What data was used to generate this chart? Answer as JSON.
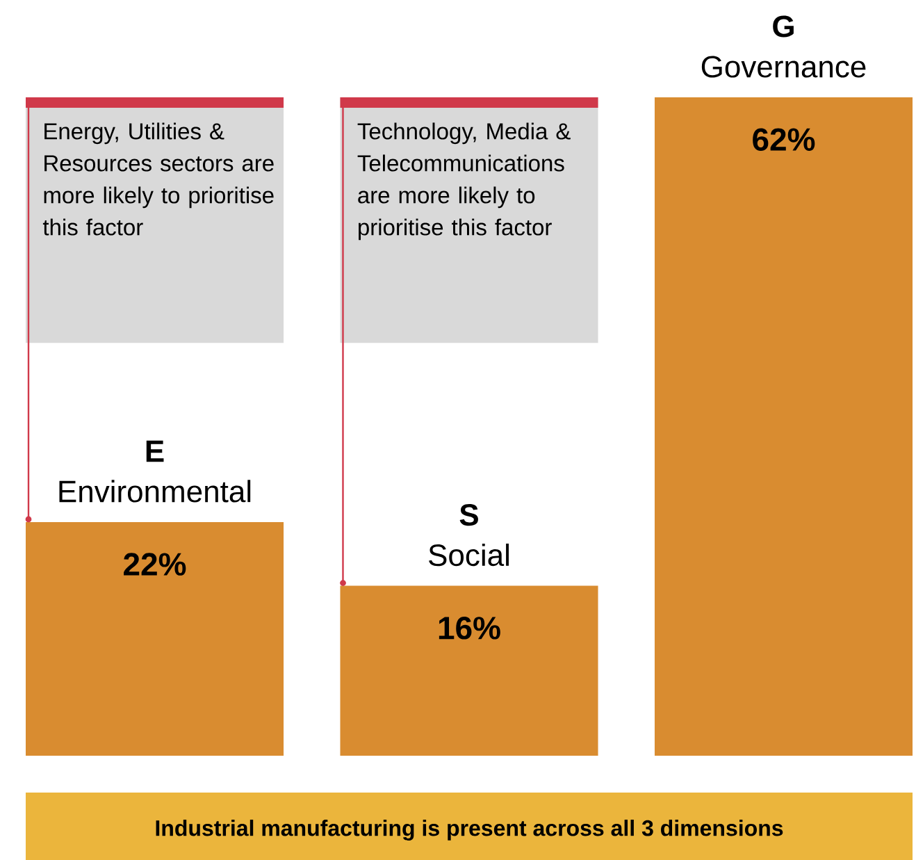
{
  "chart_data": {
    "type": "bar",
    "categories": [
      "**E** Environmental",
      "**S** Social",
      "**G** Governance"
    ],
    "values": [
      22,
      16,
      62
    ],
    "color": "#d98c30",
    "value_labels": [
      "22%",
      "16%",
      "62%"
    ],
    "annotations": [
      "Energy, Utilities & Resources sectors are more likely to prioritise this factor",
      "Technology, Media & Telecommunications are more likely to prioritise this factor",
      "Industrial manufacturing is present across all 3 dimensions"
    ]
  }
}
